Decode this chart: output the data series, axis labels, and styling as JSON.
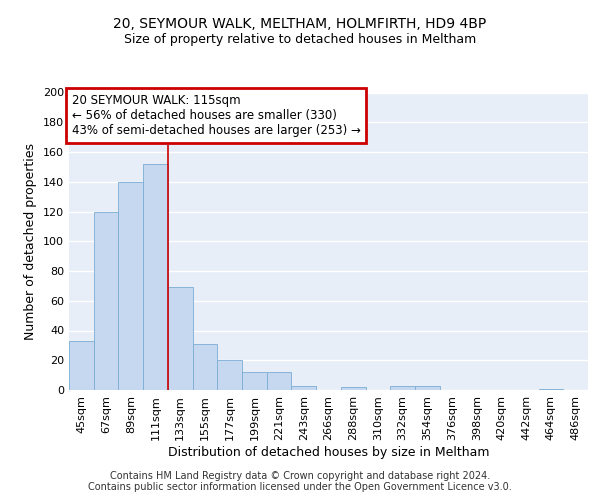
{
  "title1": "20, SEYMOUR WALK, MELTHAM, HOLMFIRTH, HD9 4BP",
  "title2": "Size of property relative to detached houses in Meltham",
  "xlabel": "Distribution of detached houses by size in Meltham",
  "ylabel": "Number of detached properties",
  "categories": [
    "45sqm",
    "67sqm",
    "89sqm",
    "111sqm",
    "133sqm",
    "155sqm",
    "177sqm",
    "199sqm",
    "221sqm",
    "243sqm",
    "266sqm",
    "288sqm",
    "310sqm",
    "332sqm",
    "354sqm",
    "376sqm",
    "398sqm",
    "420sqm",
    "442sqm",
    "464sqm",
    "486sqm"
  ],
  "values": [
    33,
    120,
    140,
    152,
    69,
    31,
    20,
    12,
    12,
    3,
    0,
    2,
    0,
    3,
    3,
    0,
    0,
    0,
    0,
    1,
    0
  ],
  "bar_color": "#c5d8ef",
  "bar_edge_color": "#7aadd4",
  "vline_x": 3.5,
  "vline_color": "#cc0000",
  "annotation_title": "20 SEYMOUR WALK: 115sqm",
  "annotation_line1": "← 56% of detached houses are smaller (330)",
  "annotation_line2": "43% of semi-detached houses are larger (253) →",
  "annotation_box_edge_color": "#cc0000",
  "footer1": "Contains HM Land Registry data © Crown copyright and database right 2024.",
  "footer2": "Contains public sector information licensed under the Open Government Licence v3.0.",
  "ylim": [
    0,
    200
  ],
  "yticks": [
    0,
    20,
    40,
    60,
    80,
    100,
    120,
    140,
    160,
    180,
    200
  ],
  "fig_bg_color": "#ffffff",
  "ax_bg_color": "#e8eef8",
  "grid_color": "#ffffff",
  "title1_fontsize": 10,
  "title2_fontsize": 9,
  "axis_label_fontsize": 9,
  "tick_fontsize": 8,
  "footer_fontsize": 7,
  "annot_fontsize": 8.5
}
